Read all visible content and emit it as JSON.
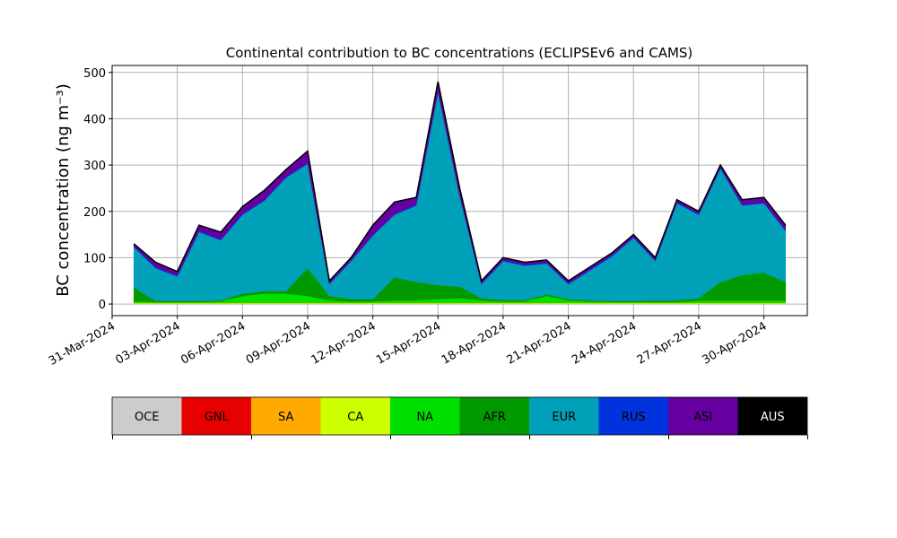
{
  "chart_data": {
    "type": "stacked_area",
    "title": "Continental contribution to BC concentrations (ECLIPSEv6 and CAMS)",
    "y_label": "BC concentration (ng m⁻³)",
    "x": [
      "01-Apr-2024",
      "02-Apr-2024",
      "03-Apr-2024",
      "04-Apr-2024",
      "05-Apr-2024",
      "06-Apr-2024",
      "07-Apr-2024",
      "08-Apr-2024",
      "09-Apr-2024",
      "10-Apr-2024",
      "11-Apr-2024",
      "12-Apr-2024",
      "13-Apr-2024",
      "14-Apr-2024",
      "15-Apr-2024",
      "16-Apr-2024",
      "17-Apr-2024",
      "18-Apr-2024",
      "19-Apr-2024",
      "20-Apr-2024",
      "21-Apr-2024",
      "22-Apr-2024",
      "23-Apr-2024",
      "24-Apr-2024",
      "25-Apr-2024",
      "26-Apr-2024",
      "27-Apr-2024",
      "28-Apr-2024",
      "29-Apr-2024",
      "30-Apr-2024",
      "01-May-2024"
    ],
    "series": [
      {
        "name": "OCE",
        "color": "#cccccc",
        "values": [
          0.5,
          0.5,
          0.5,
          0.5,
          0.5,
          0.5,
          0.5,
          0.5,
          0.5,
          0.5,
          0.5,
          0.5,
          0.5,
          0.5,
          0.5,
          0.5,
          0.5,
          0.5,
          0.5,
          0.5,
          0.5,
          0.5,
          0.5,
          0.5,
          0.5,
          0.5,
          0.5,
          0.5,
          0.5,
          0.5,
          0.5
        ]
      },
      {
        "name": "GNL",
        "color": "#e60000",
        "values": [
          0.2,
          0.2,
          0.2,
          0.2,
          0.2,
          0.2,
          0.2,
          0.2,
          0.2,
          0.2,
          0.2,
          0.2,
          0.2,
          0.2,
          0.2,
          0.2,
          0.2,
          0.2,
          0.2,
          0.2,
          0.2,
          0.2,
          0.2,
          0.2,
          0.2,
          0.2,
          0.2,
          0.2,
          0.2,
          0.2,
          0.2
        ]
      },
      {
        "name": "SA",
        "color": "#ffaa00",
        "values": [
          1,
          1,
          1,
          1,
          1,
          1,
          1,
          1,
          1,
          1,
          1,
          1,
          1,
          1,
          1,
          1,
          1,
          1,
          1,
          1,
          1,
          1,
          1,
          1,
          1,
          1,
          1,
          1,
          1,
          1,
          1
        ]
      },
      {
        "name": "CA",
        "color": "#ccff00",
        "values": [
          1,
          1,
          1,
          1,
          1,
          1,
          1,
          1,
          1,
          1,
          1,
          1,
          1,
          1,
          1,
          1,
          1,
          1,
          1,
          1,
          1,
          1,
          1,
          1,
          1,
          1,
          1,
          1,
          1,
          1,
          1
        ]
      },
      {
        "name": "NA",
        "color": "#00e000",
        "values": [
          3,
          2,
          2,
          2,
          3,
          15,
          20,
          20,
          15,
          5,
          3,
          3,
          5,
          5,
          8,
          10,
          5,
          3,
          3,
          15,
          5,
          3,
          2,
          2,
          2,
          2,
          5,
          5,
          5,
          5,
          5
        ]
      },
      {
        "name": "AFR",
        "color": "#009900",
        "values": [
          30,
          2,
          2,
          2,
          2,
          5,
          5,
          5,
          60,
          10,
          5,
          5,
          50,
          40,
          30,
          25,
          5,
          3,
          3,
          3,
          3,
          2,
          2,
          2,
          3,
          3,
          5,
          40,
          55,
          60,
          40
        ]
      },
      {
        "name": "EUR",
        "color": "#00a0b8",
        "values": [
          87,
          71,
          53,
          149,
          130,
          170,
          195,
          245,
          225,
          25,
          82,
          137,
          135,
          165,
          417,
          195,
          30,
          84,
          74,
          67,
          32,
          65,
          96,
          136,
          85,
          210,
          180,
          245,
          150,
          150,
          110
        ]
      },
      {
        "name": "RUS",
        "color": "#0033dd",
        "values": [
          2,
          2,
          2,
          2,
          2,
          2,
          2,
          2,
          2,
          2,
          2,
          2,
          2,
          2,
          2,
          2,
          2,
          2,
          2,
          2,
          2,
          2,
          2,
          2,
          2,
          2,
          2,
          2,
          2,
          2,
          2
        ]
      },
      {
        "name": "ASI",
        "color": "#6600a0",
        "values": [
          5,
          10,
          8,
          12,
          15,
          15,
          20,
          15,
          25,
          5,
          5,
          20,
          25,
          15,
          20,
          15,
          5,
          5,
          5,
          5,
          5,
          5,
          5,
          5,
          5,
          5,
          5,
          5,
          10,
          10,
          10
        ]
      },
      {
        "name": "AUS",
        "color": "#000000",
        "values": [
          0.5,
          0.5,
          0.5,
          0.5,
          0.5,
          0.5,
          0.5,
          0.5,
          0.5,
          0.5,
          0.5,
          0.5,
          0.5,
          0.5,
          0.5,
          0.5,
          0.5,
          0.5,
          0.5,
          0.5,
          0.5,
          0.5,
          0.5,
          0.5,
          0.5,
          0.5,
          0.5,
          0.5,
          0.5,
          0.5,
          0.5
        ]
      }
    ],
    "xlim": [
      "31-Mar-2024",
      "02-May-2024"
    ],
    "xticks": [
      "31-Mar-2024",
      "03-Apr-2024",
      "06-Apr-2024",
      "09-Apr-2024",
      "12-Apr-2024",
      "15-Apr-2024",
      "18-Apr-2024",
      "21-Apr-2024",
      "24-Apr-2024",
      "27-Apr-2024",
      "30-Apr-2024"
    ],
    "ylim": [
      -25,
      515
    ],
    "yticks": [
      0,
      100,
      200,
      300,
      400,
      500
    ],
    "grid": true
  }
}
